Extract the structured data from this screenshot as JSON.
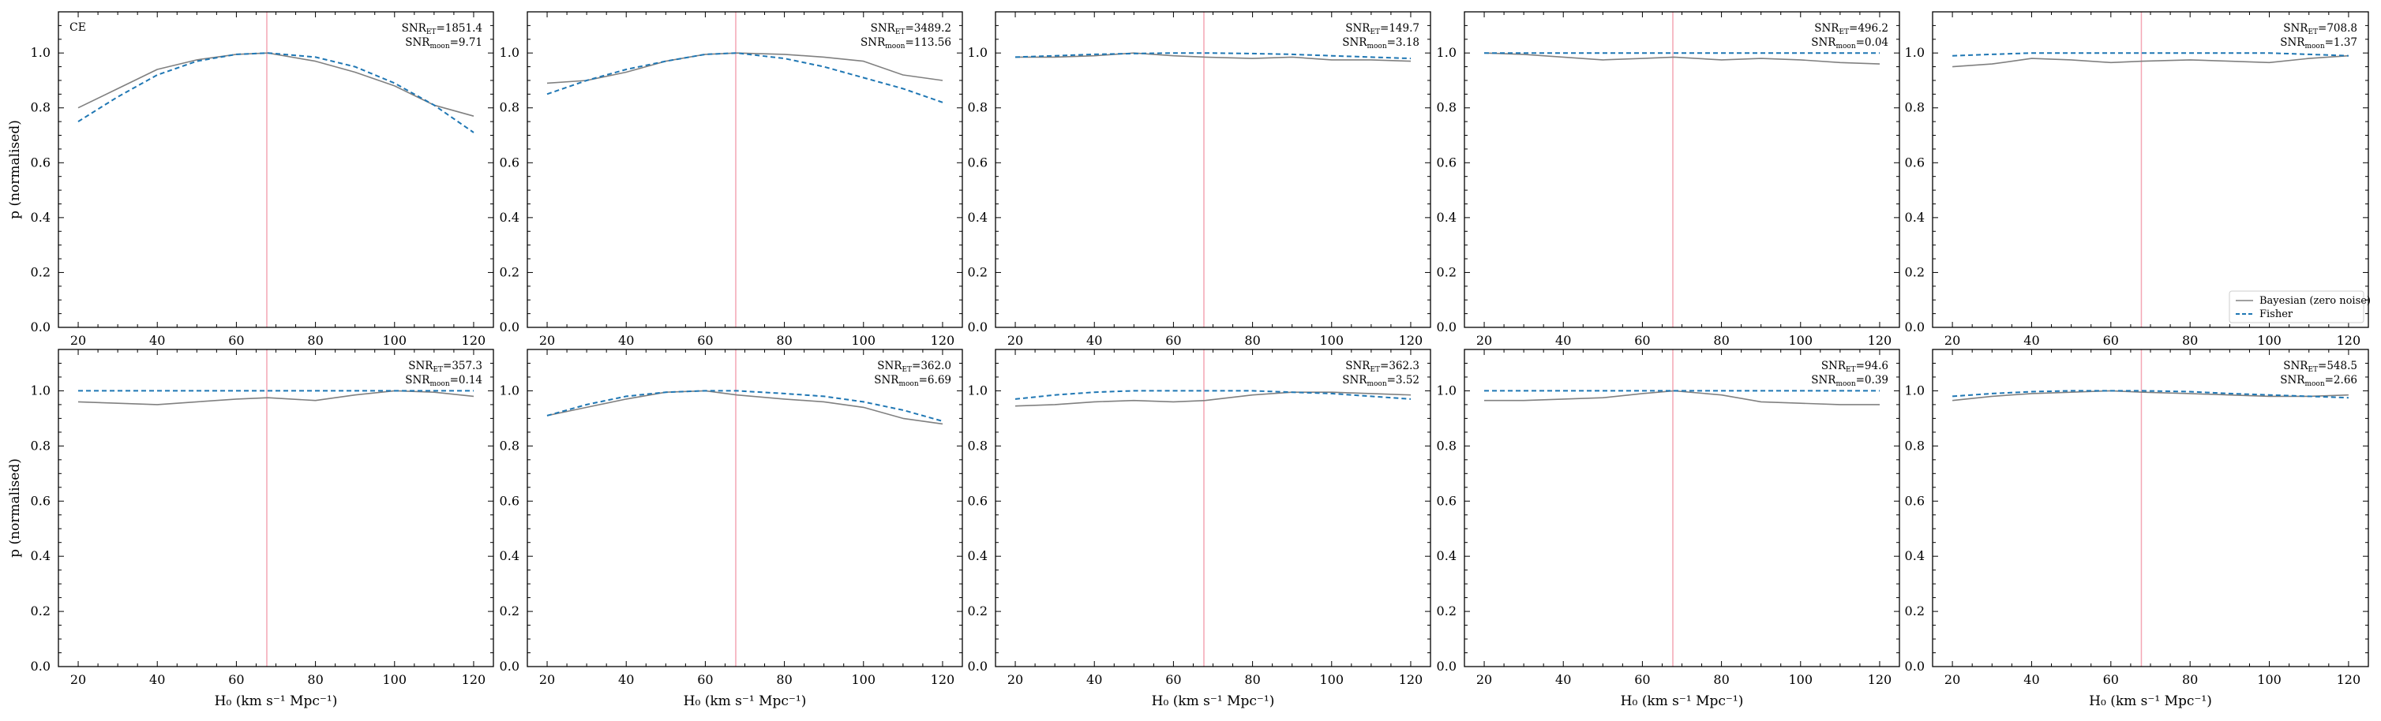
{
  "figure": {
    "ylabel": "p (normalised)",
    "xlabel": "H₀ (km s⁻¹ Mpc⁻¹)",
    "snr_et_prefix": "SNR",
    "snr_et_sub": "ET",
    "snr_moon_prefix": "SNR",
    "snr_moon_sub": "moon",
    "detector_tag": "CE"
  },
  "legend": {
    "bayesian_label": "Bayesian (zero noise)",
    "fisher_label": "Fisher"
  },
  "colors": {
    "bayesian": "#808080",
    "fisher": "#1f77b4",
    "truth_line": "#f4a6b4",
    "axes": "#000000"
  },
  "chart_data": [
    {
      "type": "line",
      "panel": 1,
      "xlim": [
        15,
        125
      ],
      "ylim": [
        0,
        1.15
      ],
      "xticks": [
        20,
        40,
        60,
        80,
        100,
        120
      ],
      "yticks": [
        0.0,
        0.2,
        0.4,
        0.6,
        0.8,
        1.0
      ],
      "truth_h0": 67.7,
      "snr_et": "=1851.4",
      "snr_moon": "=9.71",
      "x": [
        20,
        30,
        40,
        50,
        60,
        68,
        80,
        90,
        100,
        110,
        120
      ],
      "series": [
        {
          "name": "Bayesian (zero noise)",
          "values": [
            0.8,
            0.87,
            0.94,
            0.975,
            0.995,
            1.0,
            0.97,
            0.93,
            0.88,
            0.81,
            0.77
          ]
        },
        {
          "name": "Fisher",
          "values": [
            0.75,
            0.84,
            0.92,
            0.97,
            0.995,
            1.0,
            0.985,
            0.95,
            0.89,
            0.81,
            0.71
          ]
        }
      ]
    },
    {
      "type": "line",
      "panel": 2,
      "xlim": [
        15,
        125
      ],
      "ylim": [
        0,
        1.15
      ],
      "xticks": [
        20,
        40,
        60,
        80,
        100,
        120
      ],
      "yticks": [
        0.0,
        0.2,
        0.4,
        0.6,
        0.8,
        1.0
      ],
      "truth_h0": 67.7,
      "snr_et": "=3489.2",
      "snr_moon": "=113.56",
      "x": [
        20,
        30,
        40,
        50,
        60,
        68,
        80,
        90,
        100,
        110,
        120
      ],
      "series": [
        {
          "name": "Bayesian (zero noise)",
          "values": [
            0.89,
            0.9,
            0.93,
            0.97,
            0.995,
            1.0,
            0.995,
            0.985,
            0.97,
            0.92,
            0.9
          ]
        },
        {
          "name": "Fisher",
          "values": [
            0.85,
            0.9,
            0.94,
            0.97,
            0.995,
            1.0,
            0.98,
            0.95,
            0.91,
            0.87,
            0.82
          ]
        }
      ]
    },
    {
      "type": "line",
      "panel": 3,
      "xlim": [
        15,
        125
      ],
      "ylim": [
        0,
        1.15
      ],
      "xticks": [
        20,
        40,
        60,
        80,
        100,
        120
      ],
      "yticks": [
        0.0,
        0.2,
        0.4,
        0.6,
        0.8,
        1.0
      ],
      "truth_h0": 67.7,
      "snr_et": "=149.7",
      "snr_moon": "=3.18",
      "x": [
        20,
        30,
        40,
        50,
        60,
        68,
        80,
        90,
        100,
        110,
        120
      ],
      "series": [
        {
          "name": "Bayesian (zero noise)",
          "values": [
            0.985,
            0.985,
            0.99,
            1.0,
            0.99,
            0.985,
            0.98,
            0.985,
            0.975,
            0.975,
            0.97
          ]
        },
        {
          "name": "Fisher",
          "values": [
            0.985,
            0.99,
            0.995,
            0.998,
            1.0,
            1.0,
            0.998,
            0.995,
            0.99,
            0.985,
            0.98
          ]
        }
      ]
    },
    {
      "type": "line",
      "panel": 4,
      "xlim": [
        15,
        125
      ],
      "ylim": [
        0,
        1.15
      ],
      "xticks": [
        20,
        40,
        60,
        80,
        100,
        120
      ],
      "yticks": [
        0.0,
        0.2,
        0.4,
        0.6,
        0.8,
        1.0
      ],
      "truth_h0": 67.7,
      "snr_et": "=496.2",
      "snr_moon": "=0.04",
      "x": [
        20,
        30,
        40,
        50,
        60,
        68,
        80,
        90,
        100,
        110,
        120
      ],
      "series": [
        {
          "name": "Bayesian (zero noise)",
          "values": [
            1.0,
            0.995,
            0.985,
            0.975,
            0.98,
            0.985,
            0.975,
            0.98,
            0.975,
            0.965,
            0.96
          ]
        },
        {
          "name": "Fisher",
          "values": [
            1.0,
            1.0,
            1.0,
            1.0,
            1.0,
            1.0,
            1.0,
            1.0,
            1.0,
            1.0,
            1.0
          ]
        }
      ]
    },
    {
      "type": "line",
      "panel": 5,
      "xlim": [
        15,
        125
      ],
      "ylim": [
        0,
        1.15
      ],
      "xticks": [
        20,
        40,
        60,
        80,
        100,
        120
      ],
      "yticks": [
        0.0,
        0.2,
        0.4,
        0.6,
        0.8,
        1.0
      ],
      "truth_h0": 67.7,
      "snr_et": "=708.8",
      "snr_moon": "=1.37",
      "x": [
        20,
        30,
        40,
        50,
        60,
        68,
        80,
        90,
        100,
        110,
        120
      ],
      "series": [
        {
          "name": "Bayesian (zero noise)",
          "values": [
            0.95,
            0.96,
            0.98,
            0.975,
            0.965,
            0.97,
            0.975,
            0.97,
            0.965,
            0.98,
            0.99
          ]
        },
        {
          "name": "Fisher",
          "values": [
            0.99,
            0.995,
            1.0,
            1.0,
            1.0,
            1.0,
            1.0,
            1.0,
            1.0,
            0.995,
            0.99
          ]
        }
      ]
    },
    {
      "type": "line",
      "panel": 6,
      "xlim": [
        15,
        125
      ],
      "ylim": [
        0,
        1.15
      ],
      "xticks": [
        20,
        40,
        60,
        80,
        100,
        120
      ],
      "yticks": [
        0.0,
        0.2,
        0.4,
        0.6,
        0.8,
        1.0
      ],
      "truth_h0": 67.7,
      "snr_et": "=357.3",
      "snr_moon": "=0.14",
      "x": [
        20,
        30,
        40,
        50,
        60,
        68,
        80,
        90,
        100,
        110,
        120
      ],
      "series": [
        {
          "name": "Bayesian (zero noise)",
          "values": [
            0.96,
            0.955,
            0.95,
            0.96,
            0.97,
            0.975,
            0.965,
            0.985,
            1.0,
            0.995,
            0.98
          ]
        },
        {
          "name": "Fisher",
          "values": [
            1.0,
            1.0,
            1.0,
            1.0,
            1.0,
            1.0,
            1.0,
            1.0,
            1.0,
            1.0,
            1.0
          ]
        }
      ]
    },
    {
      "type": "line",
      "panel": 7,
      "xlim": [
        15,
        125
      ],
      "ylim": [
        0,
        1.15
      ],
      "xticks": [
        20,
        40,
        60,
        80,
        100,
        120
      ],
      "yticks": [
        0.0,
        0.2,
        0.4,
        0.6,
        0.8,
        1.0
      ],
      "truth_h0": 67.7,
      "snr_et": "=362.0",
      "snr_moon": "=6.69",
      "x": [
        20,
        30,
        40,
        50,
        60,
        68,
        80,
        90,
        100,
        110,
        120
      ],
      "series": [
        {
          "name": "Bayesian (zero noise)",
          "values": [
            0.91,
            0.94,
            0.97,
            0.995,
            1.0,
            0.985,
            0.97,
            0.96,
            0.94,
            0.9,
            0.88
          ]
        },
        {
          "name": "Fisher",
          "values": [
            0.91,
            0.95,
            0.98,
            0.995,
            1.0,
            1.0,
            0.99,
            0.98,
            0.96,
            0.93,
            0.89
          ]
        }
      ]
    },
    {
      "type": "line",
      "panel": 8,
      "xlim": [
        15,
        125
      ],
      "ylim": [
        0,
        1.15
      ],
      "xticks": [
        20,
        40,
        60,
        80,
        100,
        120
      ],
      "yticks": [
        0.0,
        0.2,
        0.4,
        0.6,
        0.8,
        1.0
      ],
      "truth_h0": 67.7,
      "snr_et": "=362.3",
      "snr_moon": "=3.52",
      "x": [
        20,
        30,
        40,
        50,
        60,
        68,
        80,
        90,
        100,
        110,
        120
      ],
      "series": [
        {
          "name": "Bayesian (zero noise)",
          "values": [
            0.945,
            0.95,
            0.96,
            0.965,
            0.96,
            0.965,
            0.985,
            0.995,
            0.995,
            0.99,
            0.985
          ]
        },
        {
          "name": "Fisher",
          "values": [
            0.97,
            0.985,
            0.995,
            1.0,
            1.0,
            1.0,
            1.0,
            0.995,
            0.99,
            0.98,
            0.97
          ]
        }
      ]
    },
    {
      "type": "line",
      "panel": 9,
      "xlim": [
        15,
        125
      ],
      "ylim": [
        0,
        1.15
      ],
      "xticks": [
        20,
        40,
        60,
        80,
        100,
        120
      ],
      "yticks": [
        0.0,
        0.2,
        0.4,
        0.6,
        0.8,
        1.0
      ],
      "truth_h0": 67.7,
      "snr_et": "=94.6",
      "snr_moon": "=0.39",
      "x": [
        20,
        30,
        40,
        50,
        60,
        68,
        80,
        90,
        100,
        110,
        120
      ],
      "series": [
        {
          "name": "Bayesian (zero noise)",
          "values": [
            0.965,
            0.965,
            0.97,
            0.975,
            0.99,
            1.0,
            0.985,
            0.96,
            0.955,
            0.95,
            0.95
          ]
        },
        {
          "name": "Fisher",
          "values": [
            1.0,
            1.0,
            1.0,
            1.0,
            1.0,
            1.0,
            1.0,
            1.0,
            1.0,
            1.0,
            1.0
          ]
        }
      ]
    },
    {
      "type": "line",
      "panel": 10,
      "xlim": [
        15,
        125
      ],
      "ylim": [
        0,
        1.15
      ],
      "xticks": [
        20,
        40,
        60,
        80,
        100,
        120
      ],
      "yticks": [
        0.0,
        0.2,
        0.4,
        0.6,
        0.8,
        1.0
      ],
      "truth_h0": 67.7,
      "snr_et": "=548.5",
      "snr_moon": "=2.66",
      "x": [
        20,
        30,
        40,
        50,
        60,
        68,
        80,
        90,
        100,
        110,
        120
      ],
      "series": [
        {
          "name": "Bayesian (zero noise)",
          "values": [
            0.965,
            0.98,
            0.99,
            0.995,
            1.0,
            0.995,
            0.99,
            0.985,
            0.98,
            0.98,
            0.985
          ]
        },
        {
          "name": "Fisher",
          "values": [
            0.98,
            0.99,
            0.997,
            1.0,
            1.0,
            1.0,
            0.997,
            0.99,
            0.985,
            0.98,
            0.975
          ]
        }
      ]
    }
  ]
}
